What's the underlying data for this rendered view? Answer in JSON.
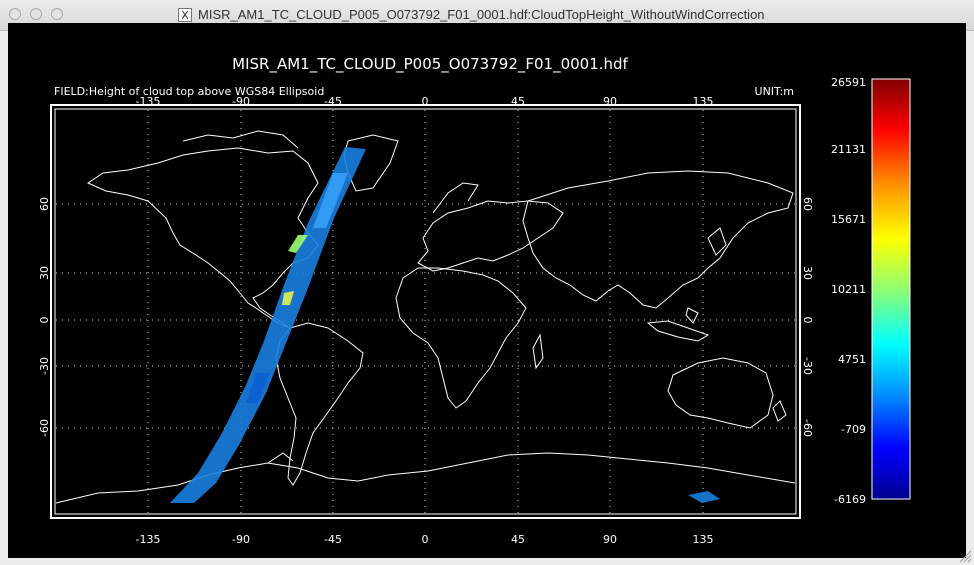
{
  "window": {
    "title": "MISR_AM1_TC_CLOUD_P005_O073792_F01_0001.hdf:CloudTopHeight_WithoutWindCorrection",
    "x_icon": "X"
  },
  "plot": {
    "title": "MISR_AM1_TC_CLOUD_P005_O073792_F01_0001.hdf",
    "field_label": "FIELD:Height of cloud top above WGS84 Ellipsoid",
    "unit_label": "UNIT:m",
    "lon_ticks": [
      "-135",
      "-90",
      "-45",
      "0",
      "45",
      "90",
      "135"
    ],
    "lat_ticks": [
      "60",
      "30",
      "0",
      "-30",
      "-60"
    ]
  },
  "colorbar": {
    "labels": [
      "26591",
      "21131",
      "15671",
      "10211",
      "4751",
      "-709",
      "-6169"
    ],
    "colors": [
      "#000090",
      "#0000ff",
      "#0090ff",
      "#00ffff",
      "#90ff70",
      "#ffff00",
      "#ff9000",
      "#ff0000",
      "#800000"
    ]
  },
  "colors": {
    "background": "#000000",
    "coastline": "#ffffff",
    "swath": "#1a7fe0"
  }
}
